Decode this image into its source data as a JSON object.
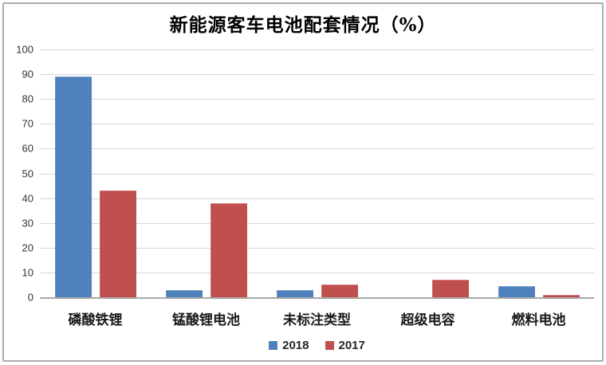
{
  "window": {
    "background_color": "#ffffff",
    "frame_border_color": "#aeaeae"
  },
  "chart_data": {
    "type": "bar",
    "title": "新能源客车电池配套情况（%）",
    "categories": [
      "磷酸铁锂",
      "锰酸锂电池",
      "未标注类型",
      "超级电容",
      "燃料电池"
    ],
    "series": [
      {
        "name": "2018",
        "color": "#4F81BD",
        "values": [
          89,
          3,
          3,
          0,
          4.5
        ]
      },
      {
        "name": "2017",
        "color": "#C0504D",
        "values": [
          43,
          38,
          5,
          7,
          1
        ]
      }
    ],
    "xlabel": "",
    "ylabel": "",
    "ylim": [
      0,
      100
    ],
    "ytick_step": 10,
    "ytick_labels": [
      "0",
      "10",
      "20",
      "30",
      "40",
      "50",
      "60",
      "70",
      "80",
      "90",
      "100"
    ],
    "grid": true,
    "gridline_color": "#d6d6d6",
    "axis_line_color": "#a8a8a8",
    "legend_position": "bottom"
  }
}
